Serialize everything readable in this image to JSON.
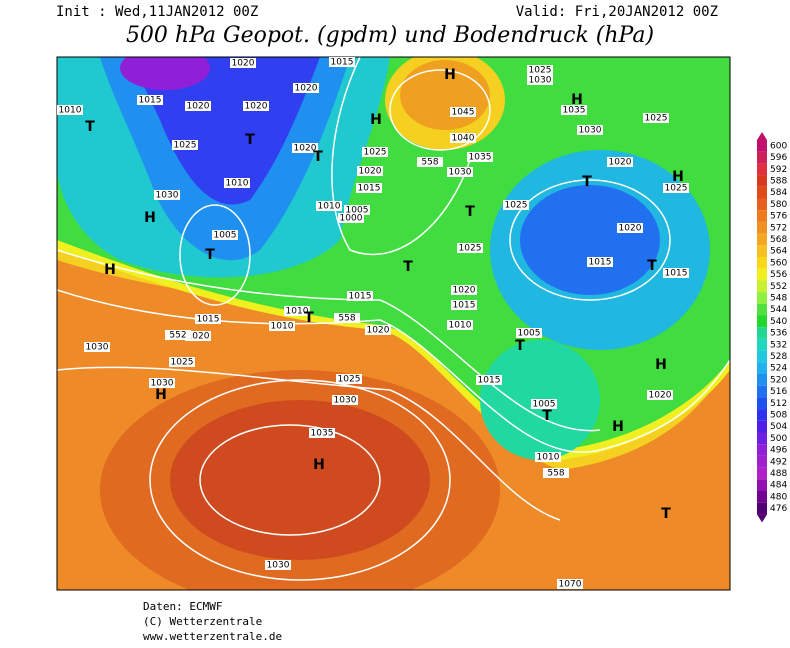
{
  "header": {
    "init": "Init : Wed,11JAN2012 00Z",
    "valid": "Valid: Fri,20JAN2012 00Z",
    "title": "500 hPa Geopot. (gpdm) und Bodendruck (hPa)"
  },
  "colorbar": {
    "levels": [
      {
        "value": 600,
        "color": "#c0106c"
      },
      {
        "value": 596,
        "color": "#d02058"
      },
      {
        "value": 592,
        "color": "#e03040"
      },
      {
        "value": 588,
        "color": "#d83820"
      },
      {
        "value": 584,
        "color": "#e04a18"
      },
      {
        "value": 580,
        "color": "#e86020"
      },
      {
        "value": 576,
        "color": "#ee7a20"
      },
      {
        "value": 572,
        "color": "#f09020"
      },
      {
        "value": 568,
        "color": "#f4a820"
      },
      {
        "value": 564,
        "color": "#f8c020"
      },
      {
        "value": 560,
        "color": "#f8d818"
      },
      {
        "value": 556,
        "color": "#f0f020"
      },
      {
        "value": 552,
        "color": "#c8f030"
      },
      {
        "value": 548,
        "color": "#90f040"
      },
      {
        "value": 544,
        "color": "#50e040"
      },
      {
        "value": 540,
        "color": "#20d830"
      },
      {
        "value": 536,
        "color": "#20d890"
      },
      {
        "value": 532,
        "color": "#20d8c0"
      },
      {
        "value": 528,
        "color": "#20c8e0"
      },
      {
        "value": 524,
        "color": "#20b0f0"
      },
      {
        "value": 520,
        "color": "#2090f0"
      },
      {
        "value": 516,
        "color": "#2070f0"
      },
      {
        "value": 512,
        "color": "#2050f0"
      },
      {
        "value": 508,
        "color": "#3030f0"
      },
      {
        "value": 504,
        "color": "#5020e8"
      },
      {
        "value": 500,
        "color": "#7020e0"
      },
      {
        "value": 496,
        "color": "#9020d8"
      },
      {
        "value": 492,
        "color": "#a020d0"
      },
      {
        "value": 488,
        "color": "#b020c8"
      },
      {
        "value": 484,
        "color": "#9010b0"
      },
      {
        "value": 480,
        "color": "#700090"
      },
      {
        "value": 476,
        "color": "#500070"
      }
    ]
  },
  "map": {
    "labels": [
      "1010",
      "1015",
      "1020",
      "1025",
      "1030",
      "1020",
      "1020",
      "1020",
      "1015",
      "1010",
      "1005",
      "1020",
      "1025",
      "1020",
      "1015",
      "1010",
      "1005",
      "1000",
      "1045",
      "1040",
      "1035",
      "1030",
      "1030",
      "1025",
      "1030",
      "1035",
      "1025",
      "1020",
      "1025",
      "1025",
      "1020",
      "1015",
      "1015",
      "1025",
      "1020",
      "1015",
      "1010",
      "1005",
      "1015",
      "1005",
      "1010",
      "1020",
      "1015",
      "1010",
      "1010",
      "1015",
      "1020",
      "1020",
      "1030",
      "1025",
      "1025",
      "1030",
      "1030",
      "1035",
      "1030",
      "1070",
      "552",
      "558",
      "558",
      "558"
    ],
    "centers": [
      "T",
      "H",
      "H",
      "T",
      "T",
      "H",
      "T",
      "H",
      "T",
      "H",
      "T",
      "T",
      "T",
      "T",
      "H",
      "H",
      "T",
      "H",
      "T",
      "H",
      "T",
      "H"
    ]
  },
  "footer": {
    "lines": [
      "Daten: ECMWF",
      "(C) Wetterzentrale",
      "www.wetterzentrale.de"
    ]
  }
}
